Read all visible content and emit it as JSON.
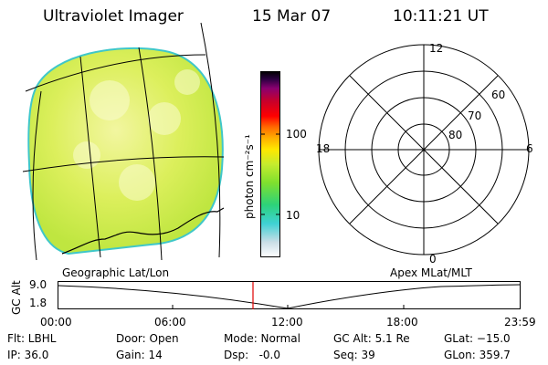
{
  "header": {
    "instrument": "Ultraviolet Imager",
    "date": "15 Mar 07",
    "time": "10:11:21 UT"
  },
  "colors": {
    "disk_fill": "#d8ec52",
    "disk_edge": "#3fc7c9",
    "timeline_cursor": "#e00000",
    "colorbar_stops": [
      "#ffffff",
      "#c9dde6",
      "#3fd1d4",
      "#2cd37a",
      "#7fe02e",
      "#c5ec2e",
      "#ffe800",
      "#ffb000",
      "#ff6a00",
      "#ff0000",
      "#c8002a",
      "#8a0070",
      "#2a0040",
      "#000000"
    ]
  },
  "colorbar": {
    "unit_label": "photon cm⁻²s⁻¹",
    "ticks": [
      "100",
      "10"
    ]
  },
  "polar_plot": {
    "mlt_labels": {
      "top": "12",
      "bottom": "0",
      "left": "18",
      "right": "6"
    },
    "lat_labels": [
      "60",
      "70",
      "80"
    ]
  },
  "map_labels": {
    "geographic": "Geographic Lat/Lon",
    "apex": "Apex MLat/MLT"
  },
  "timeline": {
    "y_label": "GC Alt",
    "y_ticks": [
      "9.0",
      "1.8"
    ],
    "x_ticks": [
      "00:00",
      "06:00",
      "12:00",
      "18:00",
      "23:59"
    ],
    "cursor_time": "10:11:21"
  },
  "status": {
    "filter": "Flt: LBHL",
    "ip": "IP: 36.0",
    "door": "Door: Open",
    "gain": "Gain: 14",
    "mode": "Mode: Normal",
    "dsp": "Dsp:   -0.0",
    "gc_alt": "GC Alt: 5.1 Re",
    "seq": "Seq: 39",
    "glat": "GLat: −15.0",
    "glon": "GLon: 359.7"
  }
}
